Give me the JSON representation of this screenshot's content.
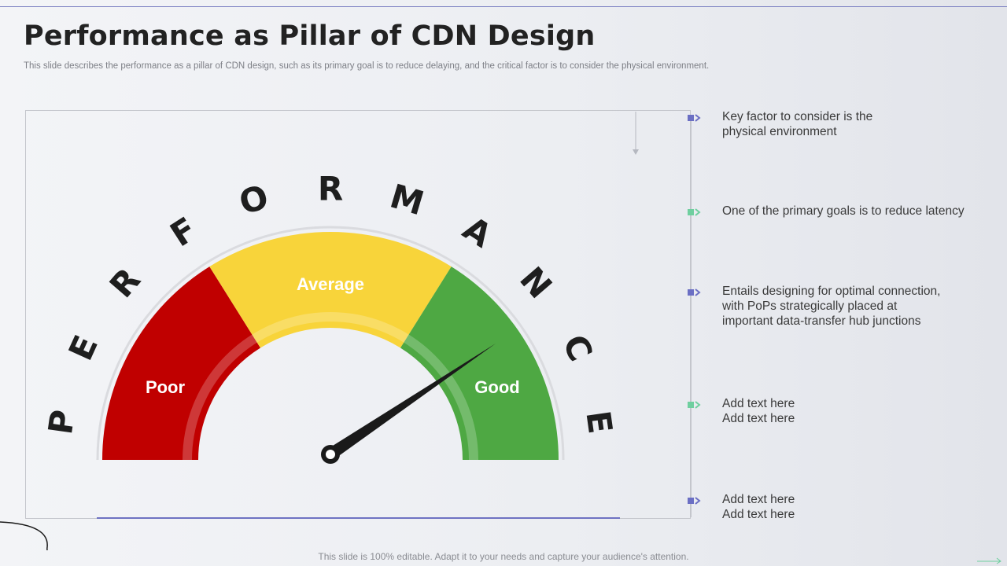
{
  "header": {
    "title": "Performance as Pillar of CDN Design",
    "subtitle": "This slide describes the performance as a pillar of CDN design, such as its primary goal is to reduce delaying, and the critical factor is to consider the physical environment."
  },
  "gauge": {
    "arc_word": [
      "P",
      "E",
      "R",
      "F",
      "O",
      "R",
      "M",
      "A",
      "N",
      "C",
      "E"
    ],
    "segments": [
      {
        "label": "Poor",
        "color": "#c00000"
      },
      {
        "label": "Average",
        "color": "#f8d43a"
      },
      {
        "label": "Good",
        "color": "#4ea843"
      }
    ]
  },
  "points": [
    {
      "text": "Key factor to consider is the\nphysical environment",
      "bullet_color": "#6b6fc4"
    },
    {
      "text": "One of the primary goals is to reduce latency",
      "bullet_color": "#6fcf9f"
    },
    {
      "text": "Entails designing for optimal connection,\nwith PoPs strategically placed at\nimportant data-transfer hub junctions",
      "bullet_color": "#6b6fc4"
    },
    {
      "text": "Add text here\nAdd text here",
      "bullet_color": "#6fcf9f"
    },
    {
      "text": "Add text here\nAdd text here",
      "bullet_color": "#6b6fc4"
    }
  ],
  "footer": {
    "note": "This slide is 100% editable. Adapt it to your needs and capture your audience's attention."
  }
}
